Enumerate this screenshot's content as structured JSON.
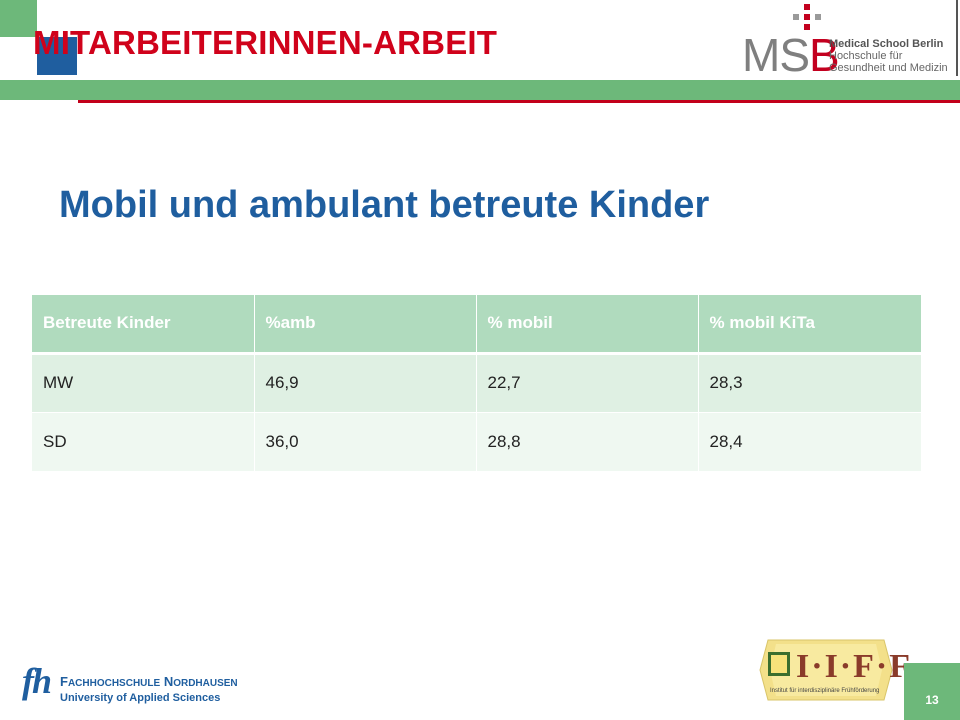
{
  "header": {
    "title": "MITARBEITERINNEN-ARBEIT",
    "logo": {
      "letters_m": "M",
      "letters_s": "S",
      "letters_b": "B",
      "line1": "Medical School Berlin",
      "line2": "Hochschule für",
      "line3": "Gesundheit und Medizin"
    }
  },
  "main": {
    "heading": "Mobil und ambulant betreute Kinder",
    "table": {
      "columns": [
        "Betreute Kinder",
        "%amb",
        "% mobil",
        "% mobil KiTa"
      ],
      "rows": [
        [
          "MW",
          "46,9",
          "22,7",
          "28,3"
        ],
        [
          "SD",
          "36,0",
          "28,8",
          "28,4"
        ]
      ]
    }
  },
  "footer": {
    "fh_logo": {
      "mark": "fh",
      "line1_cap1": "F",
      "line1_rest1": "ACHHOCHSCHULE",
      "line1_cap2": "N",
      "line1_rest2": "ORDHAUSEN",
      "line2": "University of Applied Sciences"
    },
    "iff_logo": {
      "letters": "I·I·F·F",
      "subtitle": "Institut für interdisziplinäre Frühförderung"
    },
    "page_number": "13"
  },
  "colors": {
    "accent_green": "#6db87a",
    "accent_blue": "#1f5e9f",
    "accent_red": "#d0021b",
    "table_header": "#b0dbbe",
    "table_row1": "#dff0e3",
    "table_row2": "#eff8f1"
  }
}
